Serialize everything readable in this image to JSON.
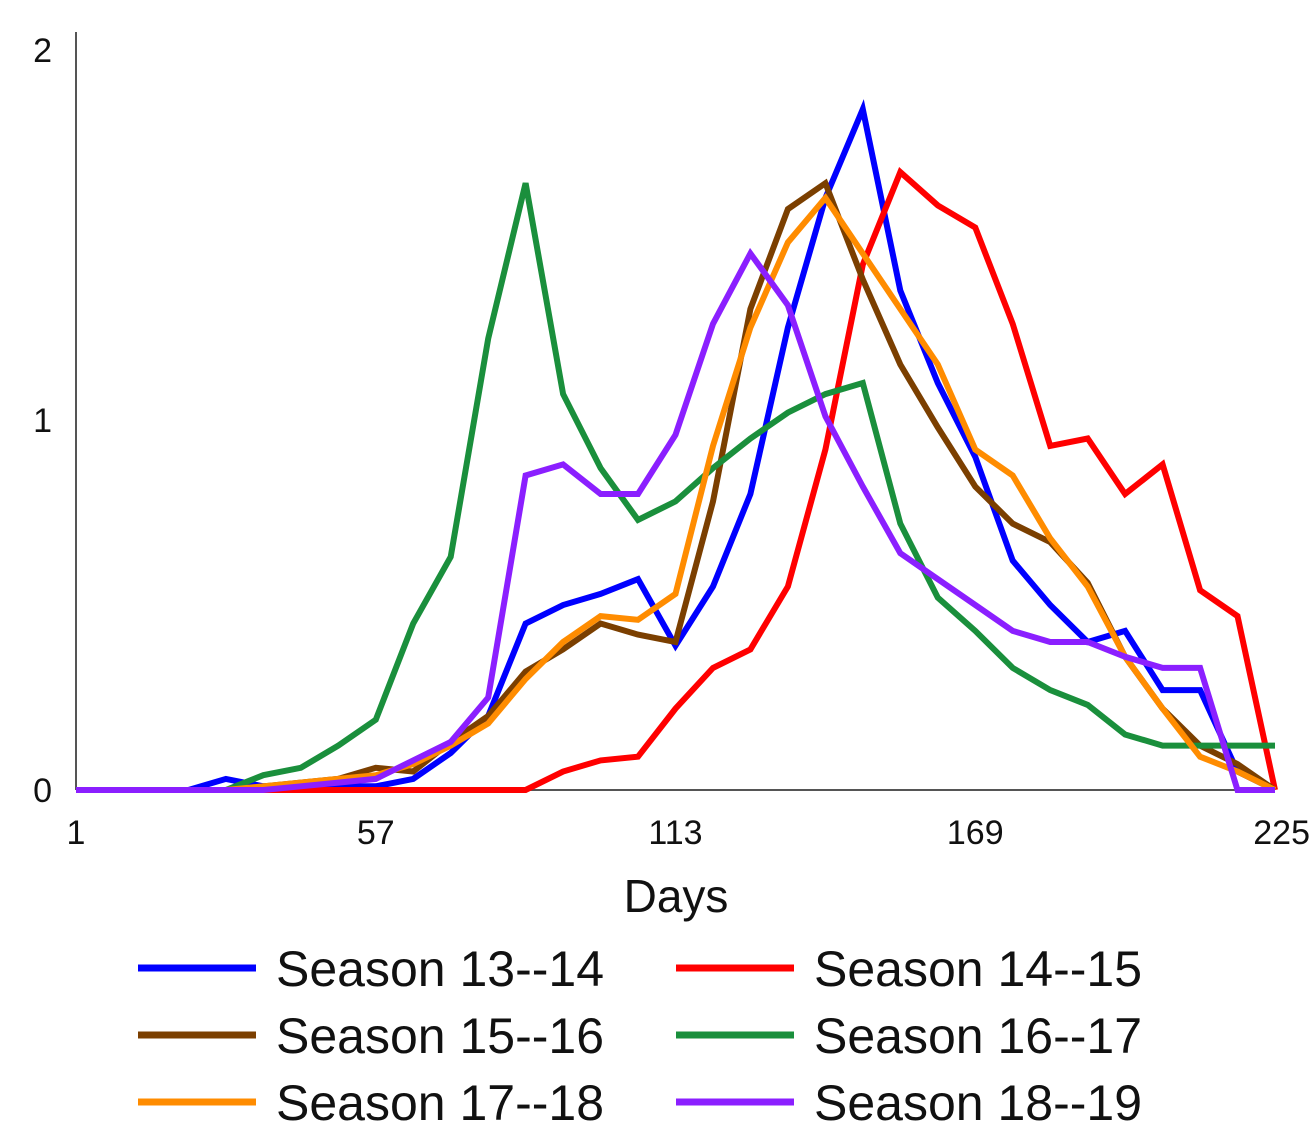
{
  "chart_data": {
    "type": "line",
    "title": "",
    "xlabel": "Days",
    "ylabel": "",
    "xlim": [
      1,
      225
    ],
    "ylim": [
      0,
      2
    ],
    "x_ticks": [
      1,
      57,
      113,
      169,
      225
    ],
    "y_ticks": [
      0,
      1,
      2
    ],
    "grid": false,
    "legend_position": "bottom",
    "x": [
      1,
      8,
      15,
      22,
      29,
      36,
      43,
      50,
      57,
      64,
      71,
      78,
      85,
      92,
      99,
      106,
      113,
      120,
      127,
      134,
      141,
      148,
      155,
      162,
      169,
      176,
      183,
      190,
      197,
      204,
      211,
      218,
      225
    ],
    "series": [
      {
        "name": "Season 13--14",
        "color": "#0000ff",
        "values": [
          0,
          0,
          0,
          0,
          0.03,
          0.01,
          0.01,
          0.01,
          0.01,
          0.03,
          0.1,
          0.2,
          0.45,
          0.5,
          0.53,
          0.57,
          0.39,
          0.55,
          0.8,
          1.25,
          1.6,
          1.84,
          1.35,
          1.1,
          0.9,
          0.62,
          0.5,
          0.4,
          0.43,
          0.27,
          0.27,
          0.05,
          0
        ]
      },
      {
        "name": "Season 14--15",
        "color": "#ff0000",
        "values": [
          0,
          0,
          0,
          0,
          0,
          0,
          0,
          0,
          0,
          0,
          0,
          0,
          0,
          0.05,
          0.08,
          0.09,
          0.22,
          0.33,
          0.38,
          0.55,
          0.92,
          1.42,
          1.67,
          1.58,
          1.52,
          1.26,
          0.93,
          0.95,
          0.8,
          0.88,
          0.54,
          0.47,
          0
        ]
      },
      {
        "name": "Season 15--16",
        "color": "#7b3f00",
        "values": [
          0,
          0,
          0,
          0,
          0,
          0.01,
          0.02,
          0.03,
          0.06,
          0.05,
          0.13,
          0.2,
          0.32,
          0.38,
          0.45,
          0.42,
          0.4,
          0.78,
          1.3,
          1.57,
          1.64,
          1.38,
          1.15,
          0.98,
          0.82,
          0.72,
          0.67,
          0.56,
          0.36,
          0.22,
          0.12,
          0.07,
          0
        ]
      },
      {
        "name": "Season 16--17",
        "color": "#1a8f3c",
        "values": [
          0,
          0,
          0,
          0,
          0,
          0.04,
          0.06,
          0.12,
          0.19,
          0.45,
          0.63,
          1.22,
          1.64,
          1.07,
          0.87,
          0.73,
          0.78,
          0.87,
          0.95,
          1.02,
          1.07,
          1.1,
          0.72,
          0.52,
          0.43,
          0.33,
          0.27,
          0.23,
          0.15,
          0.12,
          0.12,
          0.12,
          0.12
        ]
      },
      {
        "name": "Season 17--18",
        "color": "#ff8c00",
        "values": [
          0,
          0,
          0,
          0,
          0,
          0.01,
          0.02,
          0.03,
          0.04,
          0.07,
          0.12,
          0.18,
          0.3,
          0.4,
          0.47,
          0.46,
          0.53,
          0.93,
          1.25,
          1.48,
          1.6,
          1.45,
          1.3,
          1.15,
          0.92,
          0.85,
          0.68,
          0.55,
          0.36,
          0.22,
          0.09,
          0.05,
          0
        ]
      },
      {
        "name": "Season 18--19",
        "color": "#8b1fff",
        "values": [
          0,
          0,
          0,
          0,
          0,
          0,
          0.01,
          0.02,
          0.03,
          0.08,
          0.13,
          0.25,
          0.85,
          0.88,
          0.8,
          0.8,
          0.96,
          1.26,
          1.45,
          1.31,
          1.01,
          0.82,
          0.64,
          0.57,
          0.5,
          0.43,
          0.4,
          0.4,
          0.36,
          0.33,
          0.33,
          0,
          0
        ]
      }
    ]
  }
}
